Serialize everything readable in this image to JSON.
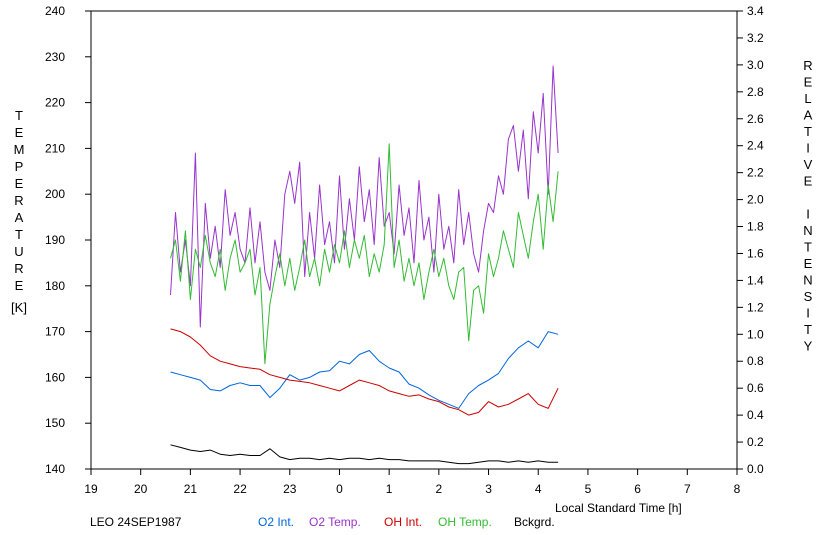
{
  "chart_data": {
    "type": "line",
    "footer_label": "LEO 24SEP1987",
    "xlabel": "Local Standard Time [h]",
    "ylabel_left": "TEMPERATURE",
    "ylabel_left_unit": "[K]",
    "ylabel_right": "RELATIVE INTENSITY",
    "x_ticks": [
      "19",
      "20",
      "21",
      "22",
      "23",
      "0",
      "1",
      "2",
      "3",
      "4",
      "5",
      "6",
      "7",
      "8"
    ],
    "y_left_ticks": [
      "140",
      "150",
      "160",
      "170",
      "180",
      "190",
      "200",
      "210",
      "220",
      "230",
      "240"
    ],
    "y_right_ticks": [
      "0.0",
      "0.2",
      "0.4",
      "0.6",
      "0.8",
      "1.0",
      "1.2",
      "1.4",
      "1.6",
      "1.8",
      "2.0",
      "2.2",
      "2.4",
      "2.6",
      "2.8",
      "3.0",
      "3.2",
      "3.4"
    ],
    "xlim": [
      19,
      32
    ],
    "ylim_left": [
      140,
      240
    ],
    "ylim_right": [
      0,
      3.4
    ],
    "grid": false,
    "legend_position": "bottom",
    "series": [
      {
        "name": "O2 Int.",
        "axis": "right",
        "color": "#0066dd",
        "x": [
          20.6,
          20.8,
          21.0,
          21.2,
          21.4,
          21.6,
          21.8,
          22.0,
          22.2,
          22.4,
          22.6,
          22.8,
          23.0,
          23.2,
          23.4,
          23.6,
          23.8,
          24.0,
          24.2,
          24.4,
          24.6,
          24.8,
          25.0,
          25.2,
          25.4,
          25.6,
          25.8,
          26.0,
          26.2,
          26.4,
          26.6,
          26.8,
          27.0,
          27.2,
          27.4,
          27.6,
          27.8,
          28.0,
          28.2,
          28.4
        ],
        "y": [
          0.72,
          0.7,
          0.68,
          0.66,
          0.59,
          0.58,
          0.62,
          0.64,
          0.62,
          0.62,
          0.53,
          0.6,
          0.7,
          0.66,
          0.68,
          0.72,
          0.73,
          0.8,
          0.78,
          0.85,
          0.88,
          0.8,
          0.75,
          0.72,
          0.63,
          0.6,
          0.55,
          0.51,
          0.48,
          0.45,
          0.56,
          0.62,
          0.66,
          0.71,
          0.82,
          0.9,
          0.95,
          0.9,
          1.02,
          1.0
        ]
      },
      {
        "name": "O2 Temp.",
        "axis": "left",
        "color": "#9933cc",
        "x": [
          20.6,
          20.7,
          20.8,
          20.9,
          21.0,
          21.1,
          21.2,
          21.3,
          21.4,
          21.5,
          21.6,
          21.7,
          21.8,
          21.9,
          22.0,
          22.1,
          22.2,
          22.3,
          22.4,
          22.5,
          22.6,
          22.7,
          22.8,
          22.9,
          23.0,
          23.1,
          23.2,
          23.3,
          23.4,
          23.5,
          23.6,
          23.7,
          23.8,
          23.9,
          24.0,
          24.1,
          24.2,
          24.3,
          24.4,
          24.5,
          24.6,
          24.7,
          24.8,
          24.9,
          25.0,
          25.1,
          25.2,
          25.3,
          25.4,
          25.5,
          25.6,
          25.7,
          25.8,
          25.9,
          26.0,
          26.1,
          26.2,
          26.3,
          26.4,
          26.5,
          26.6,
          26.7,
          26.8,
          26.9,
          27.0,
          27.1,
          27.2,
          27.3,
          27.4,
          27.5,
          27.6,
          27.7,
          27.8,
          27.9,
          28.0,
          28.1,
          28.2,
          28.3,
          28.4
        ],
        "y": [
          178,
          196,
          183,
          190,
          180,
          209,
          171,
          198,
          186,
          193,
          184,
          201,
          191,
          196,
          188,
          185,
          197,
          185,
          194,
          183,
          179,
          190,
          184,
          200,
          205,
          198,
          207,
          182,
          196,
          186,
          202,
          189,
          194,
          185,
          204,
          188,
          199,
          190,
          206,
          194,
          201,
          189,
          208,
          193,
          196,
          187,
          202,
          191,
          197,
          185,
          203,
          190,
          195,
          183,
          200,
          188,
          193,
          185,
          201,
          189,
          196,
          187,
          183,
          192,
          198,
          196,
          204,
          200,
          212,
          215,
          205,
          214,
          199,
          218,
          209,
          222,
          200,
          228,
          209
        ]
      },
      {
        "name": "OH Int.",
        "axis": "right",
        "color": "#cc0000",
        "x": [
          20.6,
          20.8,
          21.0,
          21.2,
          21.4,
          21.6,
          21.8,
          22.0,
          22.2,
          22.4,
          22.6,
          22.8,
          23.0,
          23.2,
          23.4,
          23.6,
          23.8,
          24.0,
          24.2,
          24.4,
          24.6,
          24.8,
          25.0,
          25.2,
          25.4,
          25.6,
          25.8,
          26.0,
          26.2,
          26.4,
          26.6,
          26.8,
          27.0,
          27.2,
          27.4,
          27.6,
          27.8,
          28.0,
          28.2,
          28.4
        ],
        "y": [
          1.04,
          1.02,
          0.98,
          0.92,
          0.84,
          0.8,
          0.78,
          0.76,
          0.75,
          0.74,
          0.7,
          0.68,
          0.66,
          0.65,
          0.64,
          0.62,
          0.6,
          0.58,
          0.62,
          0.66,
          0.64,
          0.62,
          0.58,
          0.56,
          0.54,
          0.55,
          0.52,
          0.5,
          0.46,
          0.44,
          0.4,
          0.42,
          0.5,
          0.46,
          0.48,
          0.52,
          0.56,
          0.48,
          0.45,
          0.6
        ]
      },
      {
        "name": "OH Temp.",
        "axis": "left",
        "color": "#33bb33",
        "x": [
          20.6,
          20.7,
          20.8,
          20.9,
          21.0,
          21.1,
          21.2,
          21.3,
          21.4,
          21.5,
          21.6,
          21.7,
          21.8,
          21.9,
          22.0,
          22.1,
          22.2,
          22.3,
          22.4,
          22.5,
          22.6,
          22.7,
          22.8,
          22.9,
          23.0,
          23.1,
          23.2,
          23.3,
          23.4,
          23.5,
          23.6,
          23.7,
          23.8,
          23.9,
          24.0,
          24.1,
          24.2,
          24.3,
          24.4,
          24.5,
          24.6,
          24.7,
          24.8,
          24.9,
          25.0,
          25.1,
          25.2,
          25.3,
          25.4,
          25.5,
          25.6,
          25.7,
          25.8,
          25.9,
          26.0,
          26.1,
          26.2,
          26.3,
          26.4,
          26.5,
          26.6,
          26.7,
          26.8,
          26.9,
          27.0,
          27.1,
          27.2,
          27.3,
          27.4,
          27.5,
          27.6,
          27.7,
          27.8,
          27.9,
          28.0,
          28.1,
          28.2,
          28.3,
          28.4
        ],
        "y": [
          186,
          190,
          181,
          192,
          177,
          188,
          184,
          191,
          185,
          182,
          188,
          179,
          186,
          190,
          183,
          185,
          188,
          178,
          184,
          163,
          176,
          182,
          187,
          180,
          186,
          179,
          184,
          190,
          182,
          186,
          180,
          188,
          183,
          189,
          185,
          192,
          184,
          190,
          186,
          191,
          182,
          187,
          183,
          189,
          211,
          184,
          190,
          181,
          186,
          180,
          185,
          177,
          183,
          188,
          182,
          186,
          180,
          177,
          183,
          184,
          168,
          179,
          180,
          174,
          187,
          182,
          186,
          192,
          188,
          184,
          196,
          191,
          186,
          194,
          200,
          188,
          202,
          194,
          205
        ]
      },
      {
        "name": "Bckgrd.",
        "axis": "right",
        "color": "#000000",
        "x": [
          20.6,
          20.8,
          21.0,
          21.2,
          21.4,
          21.6,
          21.8,
          22.0,
          22.2,
          22.4,
          22.6,
          22.8,
          23.0,
          23.2,
          23.4,
          23.6,
          23.8,
          24.0,
          24.2,
          24.4,
          24.6,
          24.8,
          25.0,
          25.2,
          25.4,
          25.6,
          25.8,
          26.0,
          26.2,
          26.4,
          26.6,
          26.8,
          27.0,
          27.2,
          27.4,
          27.6,
          27.8,
          28.0,
          28.2,
          28.4
        ],
        "y": [
          0.18,
          0.16,
          0.14,
          0.13,
          0.14,
          0.11,
          0.1,
          0.11,
          0.1,
          0.1,
          0.15,
          0.09,
          0.07,
          0.08,
          0.08,
          0.07,
          0.08,
          0.07,
          0.08,
          0.08,
          0.07,
          0.08,
          0.07,
          0.07,
          0.06,
          0.06,
          0.06,
          0.06,
          0.05,
          0.04,
          0.04,
          0.05,
          0.06,
          0.06,
          0.05,
          0.06,
          0.05,
          0.06,
          0.05,
          0.05
        ]
      }
    ]
  },
  "legend": [
    {
      "label": "O2 Int.",
      "color": "#0066dd"
    },
    {
      "label": "O2 Temp.",
      "color": "#9933cc"
    },
    {
      "label": "OH Int.",
      "color": "#cc0000"
    },
    {
      "label": "OH Temp.",
      "color": "#33bb33"
    },
    {
      "label": "Bckgrd.",
      "color": "#000000"
    }
  ]
}
